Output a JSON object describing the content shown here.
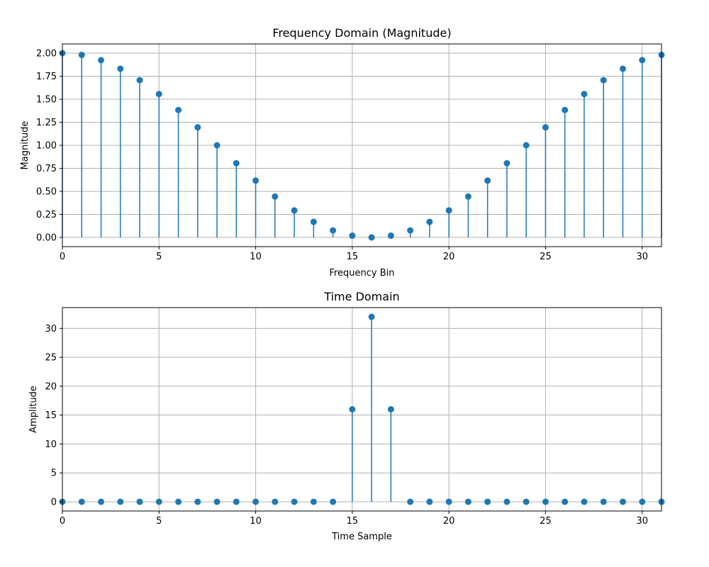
{
  "chart_data": [
    {
      "type": "stem",
      "title": "Frequency Domain (Magnitude)",
      "xlabel": "Frequency Bin",
      "ylabel": "Magnitude",
      "xlim": [
        0,
        31
      ],
      "ylim": [
        -0.1,
        2.1
      ],
      "xticks": [
        0,
        5,
        10,
        15,
        20,
        25,
        30
      ],
      "yticks": [
        0,
        0.25,
        0.5,
        0.75,
        1.0,
        1.25,
        1.5,
        1.75,
        2.0
      ],
      "ytick_labels": [
        "0.00",
        "0.25",
        "0.50",
        "0.75",
        "1.00",
        "1.25",
        "1.50",
        "1.75",
        "2.00"
      ],
      "grid": true,
      "color": "#1f77b4",
      "x": [
        0,
        1,
        2,
        3,
        4,
        5,
        6,
        7,
        8,
        9,
        10,
        11,
        12,
        13,
        14,
        15,
        16,
        17,
        18,
        19,
        20,
        21,
        22,
        23,
        24,
        25,
        26,
        27,
        28,
        29,
        30,
        31
      ],
      "values": [
        2.0,
        1.981,
        1.924,
        1.831,
        1.707,
        1.556,
        1.383,
        1.195,
        1.0,
        0.805,
        0.617,
        0.444,
        0.293,
        0.169,
        0.076,
        0.019,
        0.0,
        0.019,
        0.076,
        0.169,
        0.293,
        0.444,
        0.617,
        0.805,
        1.0,
        1.195,
        1.383,
        1.556,
        1.707,
        1.831,
        1.924,
        1.981
      ]
    },
    {
      "type": "stem",
      "title": "Time Domain",
      "xlabel": "Time Sample",
      "ylabel": "Amplitude",
      "xlim": [
        0,
        31
      ],
      "ylim": [
        -1.6,
        33.6
      ],
      "xticks": [
        0,
        5,
        10,
        15,
        20,
        25,
        30
      ],
      "yticks": [
        0,
        5,
        10,
        15,
        20,
        25,
        30
      ],
      "ytick_labels": [
        "0",
        "5",
        "10",
        "15",
        "20",
        "25",
        "30"
      ],
      "grid": true,
      "color": "#1f77b4",
      "x": [
        0,
        1,
        2,
        3,
        4,
        5,
        6,
        7,
        8,
        9,
        10,
        11,
        12,
        13,
        14,
        15,
        16,
        17,
        18,
        19,
        20,
        21,
        22,
        23,
        24,
        25,
        26,
        27,
        28,
        29,
        30,
        31
      ],
      "values": [
        0,
        0,
        0,
        0,
        0,
        0,
        0,
        0,
        0,
        0,
        0,
        0,
        0,
        0,
        0,
        16,
        32,
        16,
        0,
        0,
        0,
        0,
        0,
        0,
        0,
        0,
        0,
        0,
        0,
        0,
        0,
        0
      ]
    }
  ]
}
